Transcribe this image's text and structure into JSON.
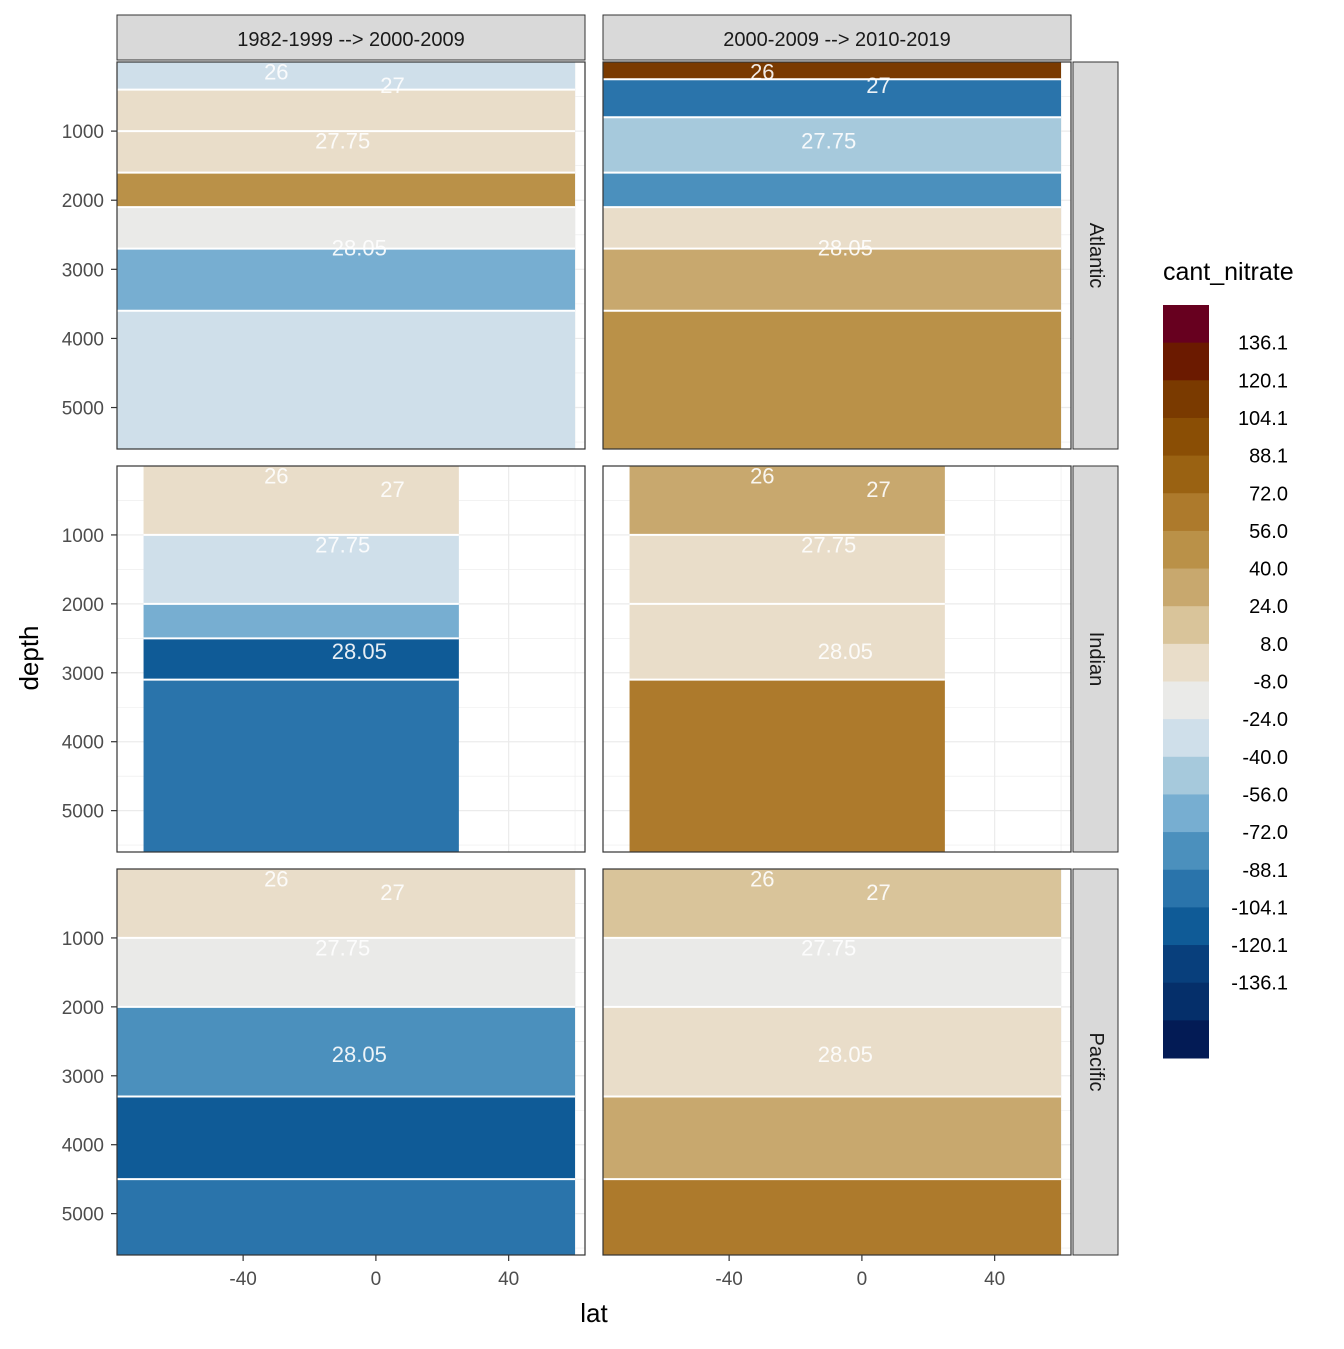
{
  "chart_data": {
    "type": "heatmap",
    "subtype": "faceted filled-contour ocean sections with isopycnal contour lines",
    "xlabel": "lat",
    "ylabel": "depth",
    "x_ticks": [
      -40,
      0,
      40
    ],
    "x_range": [
      -78,
      63
    ],
    "y_ticks": [
      1000,
      2000,
      3000,
      4000,
      5000
    ],
    "y_range": [
      5600,
      0
    ],
    "y_reversed": true,
    "grid": true,
    "column_facets": [
      "1982-1999 --> 2000-2009",
      "2000-2009 --> 2010-2019"
    ],
    "row_facets": [
      "Atlantic",
      "Indian",
      "Pacific"
    ],
    "legend": {
      "title": "cant_nitrate",
      "placement": "right",
      "labels": [
        "136.1",
        "120.1",
        "104.1",
        "88.1",
        "72.0",
        "56.0",
        "40.0",
        "24.0",
        "8.0",
        "-8.0",
        "-24.0",
        "-40.0",
        "-56.0",
        "-72.0",
        "-88.1",
        "-104.1",
        "-120.1",
        "-136.1"
      ],
      "colors": [
        "#67001f",
        "#6b1a00",
        "#7a3a00",
        "#8a4e05",
        "#9a6212",
        "#ad7a2c",
        "#ba9148",
        "#c8a86e",
        "#d9c49a",
        "#e9ddc9",
        "#eaeae8",
        "#cfdfea",
        "#a6c9dc",
        "#77aed1",
        "#4b90bd",
        "#2a74ab",
        "#0f5b97",
        "#083f7c",
        "#052f6a",
        "#031b55"
      ]
    },
    "contour_labels": [
      "26",
      "27",
      "27.75",
      "28.05"
    ],
    "panels": [
      {
        "column": "1982-1999 --> 2000-2009",
        "row": "Atlantic",
        "lat_range": [
          -78,
          60
        ],
        "max_depth": 5600,
        "layers": [
          {
            "depth_range": [
              0,
              400
            ],
            "value": -40.0
          },
          {
            "depth_range": [
              400,
              1000
            ],
            "value": -8.0
          },
          {
            "depth_range": [
              1000,
              1600
            ],
            "value": -8.0
          },
          {
            "depth_range": [
              1600,
              2100
            ],
            "value": 40.0
          },
          {
            "depth_range": [
              2100,
              2700
            ],
            "value": -24.0
          },
          {
            "depth_range": [
              2700,
              3600
            ],
            "value": -72.0
          },
          {
            "depth_range": [
              3600,
              5600
            ],
            "value": -40.0
          }
        ]
      },
      {
        "column": "2000-2009 --> 2010-2019",
        "row": "Atlantic",
        "lat_range": [
          -78,
          60
        ],
        "max_depth": 5600,
        "layers": [
          {
            "depth_range": [
              0,
              250
            ],
            "value": 104.1
          },
          {
            "depth_range": [
              250,
              800
            ],
            "value": -104.1
          },
          {
            "depth_range": [
              800,
              1600
            ],
            "value": -56.0
          },
          {
            "depth_range": [
              1600,
              2100
            ],
            "value": -88.1
          },
          {
            "depth_range": [
              2100,
              2700
            ],
            "value": -8.0
          },
          {
            "depth_range": [
              2700,
              3600
            ],
            "value": 24.0
          },
          {
            "depth_range": [
              3600,
              5600
            ],
            "value": 40.0
          }
        ]
      },
      {
        "column": "1982-1999 --> 2000-2009",
        "row": "Indian",
        "lat_range": [
          -70,
          25
        ],
        "max_depth": 5600,
        "layers": [
          {
            "depth_range": [
              0,
              1000
            ],
            "value": -8.0
          },
          {
            "depth_range": [
              1000,
              2000
            ],
            "value": -40.0
          },
          {
            "depth_range": [
              2000,
              2500
            ],
            "value": -72.0
          },
          {
            "depth_range": [
              2500,
              3100
            ],
            "value": -120.1
          },
          {
            "depth_range": [
              3100,
              5600
            ],
            "value": -104.1
          }
        ]
      },
      {
        "column": "2000-2009 --> 2010-2019",
        "row": "Indian",
        "lat_range": [
          -70,
          25
        ],
        "max_depth": 5600,
        "layers": [
          {
            "depth_range": [
              0,
              1000
            ],
            "value": 24.0
          },
          {
            "depth_range": [
              1000,
              2000
            ],
            "value": -8.0
          },
          {
            "depth_range": [
              2000,
              3100
            ],
            "value": -8.0
          },
          {
            "depth_range": [
              3100,
              5600
            ],
            "value": 56.0
          }
        ]
      },
      {
        "column": "1982-1999 --> 2000-2009",
        "row": "Pacific",
        "lat_range": [
          -78,
          60
        ],
        "max_depth": 5600,
        "layers": [
          {
            "depth_range": [
              0,
              1000
            ],
            "value": -8.0
          },
          {
            "depth_range": [
              1000,
              2000
            ],
            "value": -24.0
          },
          {
            "depth_range": [
              2000,
              3300
            ],
            "value": -88.1
          },
          {
            "depth_range": [
              3300,
              4500
            ],
            "value": -120.1
          },
          {
            "depth_range": [
              4500,
              5600
            ],
            "value": -104.1
          }
        ]
      },
      {
        "column": "2000-2009 --> 2010-2019",
        "row": "Pacific",
        "lat_range": [
          -78,
          60
        ],
        "max_depth": 5600,
        "layers": [
          {
            "depth_range": [
              0,
              1000
            ],
            "value": 8.0
          },
          {
            "depth_range": [
              1000,
              2000
            ],
            "value": -24.0
          },
          {
            "depth_range": [
              2000,
              3300
            ],
            "value": -8.0
          },
          {
            "depth_range": [
              3300,
              4500
            ],
            "value": 24.0
          },
          {
            "depth_range": [
              4500,
              5600
            ],
            "value": 56.0
          }
        ]
      }
    ]
  }
}
